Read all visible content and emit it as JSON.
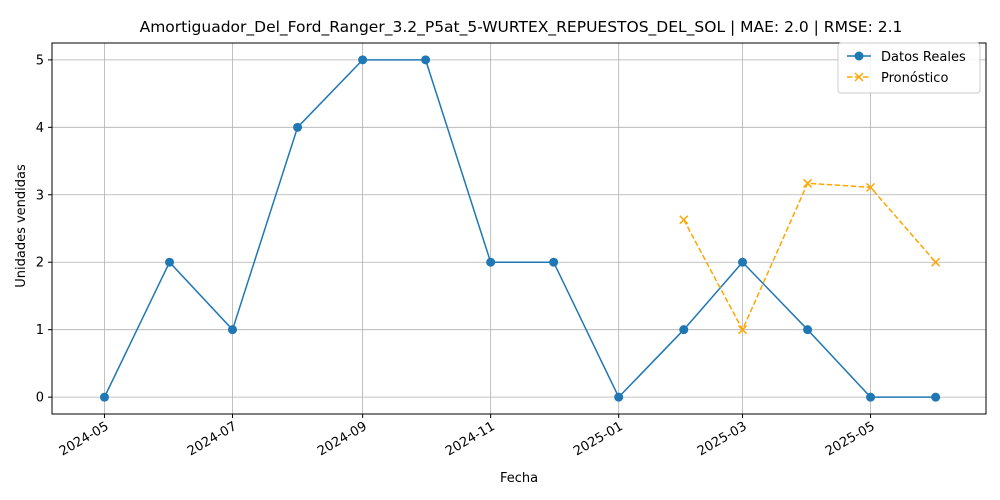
{
  "chart_data": {
    "type": "line",
    "title": "Amortiguador_Del_Ford_Ranger_3.2_P5at_5-WURTEX_REPUESTOS_DEL_SOL | MAE: 2.0 | RMSE: 2.1",
    "xlabel": "Fecha",
    "ylabel": "Unidades vendidas",
    "x_ticks": [
      "2024-05",
      "2024-07",
      "2024-09",
      "2024-11",
      "2025-01",
      "2025-03",
      "2025-05"
    ],
    "x_range": [
      "2024-04-06",
      "2025-06-25"
    ],
    "y_ticks": [
      "0",
      "1",
      "2",
      "3",
      "4",
      "5"
    ],
    "ylim": [
      -0.25,
      5.25
    ],
    "grid": true,
    "legend_position": "top-right",
    "series": [
      {
        "name": "Datos Reales",
        "color": "#1f77b4",
        "style": "solid",
        "marker": "circle",
        "x": [
          "2024-05-01",
          "2024-06-01",
          "2024-07-01",
          "2024-08-01",
          "2024-09-01",
          "2024-10-01",
          "2024-11-01",
          "2024-12-01",
          "2025-01-01",
          "2025-02-01",
          "2025-03-01",
          "2025-04-01",
          "2025-05-01",
          "2025-06-01"
        ],
        "y": [
          0,
          2,
          1,
          4,
          5,
          5,
          2,
          2,
          0,
          1,
          2,
          1,
          0,
          0
        ]
      },
      {
        "name": "Pronóstico",
        "color": "#ffa500",
        "style": "dashed",
        "marker": "x",
        "x": [
          "2025-02-01",
          "2025-03-01",
          "2025-04-01",
          "2025-05-01",
          "2025-06-01"
        ],
        "y": [
          2.63,
          1.0,
          3.17,
          3.11,
          2.0
        ]
      }
    ]
  }
}
